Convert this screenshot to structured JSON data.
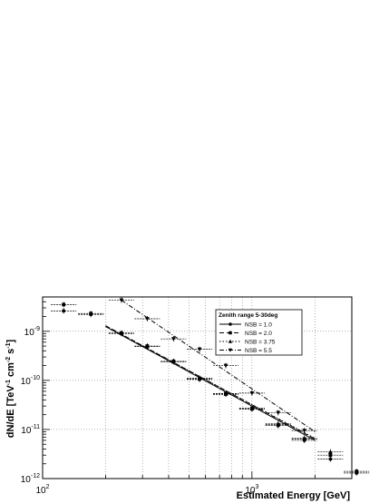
{
  "chart_data": {
    "type": "scatter",
    "title": "",
    "xlabel": "Estimated Energy [GeV]",
    "ylabel_parts": {
      "a": "dN/dE [TeV",
      "a_sup": "-1",
      "b": " cm",
      "b_sup": "-2",
      "c": " s",
      "c_sup": "-1",
      "d": "]"
    },
    "xscale": "log",
    "yscale": "log",
    "xlim": [
      100,
      3000
    ],
    "ylim": [
      1e-12,
      5e-09
    ],
    "grid": true,
    "x_ticks": [
      {
        "value": 100,
        "base": "10",
        "exp": "2"
      },
      {
        "value": 1000,
        "base": "10",
        "exp": "3"
      }
    ],
    "y_ticks": [
      {
        "value": 1e-12,
        "base": "10",
        "exp": "-12"
      },
      {
        "value": 1e-11,
        "base": "10",
        "exp": "-11"
      },
      {
        "value": 1e-10,
        "base": "10",
        "exp": "-10"
      },
      {
        "value": 1e-09,
        "base": "10",
        "exp": "-9"
      }
    ],
    "legend": {
      "title": "Zenith range 5-30deg",
      "position": "top-right"
    },
    "series": [
      {
        "name": "NSB = 1.0",
        "marker": "circle",
        "line": "solid",
        "x": [
          126,
          170,
          238,
          316,
          422,
          562,
          750,
          1000,
          1334,
          1780,
          2370,
          3160
        ],
        "y": [
          2.6e-09,
          2.2e-09,
          9e-10,
          4.9e-10,
          2.4e-10,
          1.05e-10,
          5.2e-11,
          2.6e-11,
          1.2e-11,
          6e-12,
          2.5e-12,
          1.3e-12
        ],
        "fit": {
          "x": [
            200,
            2000
          ],
          "y": [
            1.25e-09,
            6e-12
          ]
        }
      },
      {
        "name": "NSB = 2.0",
        "marker": "square",
        "line": "dashed",
        "x": [
          126,
          170,
          238,
          316,
          422,
          562,
          750,
          1000,
          1334,
          1780,
          2370,
          3160
        ],
        "y": [
          3.5e-09,
          2.3e-09,
          9.2e-10,
          5e-10,
          2.45e-10,
          1.1e-10,
          5.4e-11,
          2.7e-11,
          1.25e-11,
          6.4e-12,
          3e-12,
          1.4e-12
        ],
        "fit": {
          "x": [
            200,
            2000
          ],
          "y": [
            1.3e-09,
            6.4e-12
          ]
        }
      },
      {
        "name": "NSB = 3.75",
        "marker": "triangle-up",
        "line": "dotted",
        "x": [
          238,
          316,
          422,
          562,
          750,
          1000,
          1334,
          1780,
          2370
        ],
        "y": [
          9.1e-10,
          4.95e-10,
          2.4e-10,
          1.08e-10,
          5.3e-11,
          2.65e-11,
          1.3e-11,
          6.6e-12,
          3.5e-12
        ],
        "fit": {
          "x": [
            200,
            2000
          ],
          "y": [
            1.28e-09,
            6.6e-12
          ]
        }
      },
      {
        "name": "NSB = 5.5",
        "marker": "triangle-down",
        "line": "dashdot",
        "x": [
          238,
          316,
          422,
          562,
          750,
          1000,
          1334,
          1780
        ],
        "y": [
          4.3e-09,
          1.8e-09,
          7e-10,
          4.3e-10,
          2e-10,
          5.5e-11,
          2.2e-11,
          9.5e-12
        ],
        "fit": {
          "x": [
            238,
            2000
          ],
          "y": [
            4.3e-09,
            9e-12
          ]
        }
      }
    ]
  }
}
